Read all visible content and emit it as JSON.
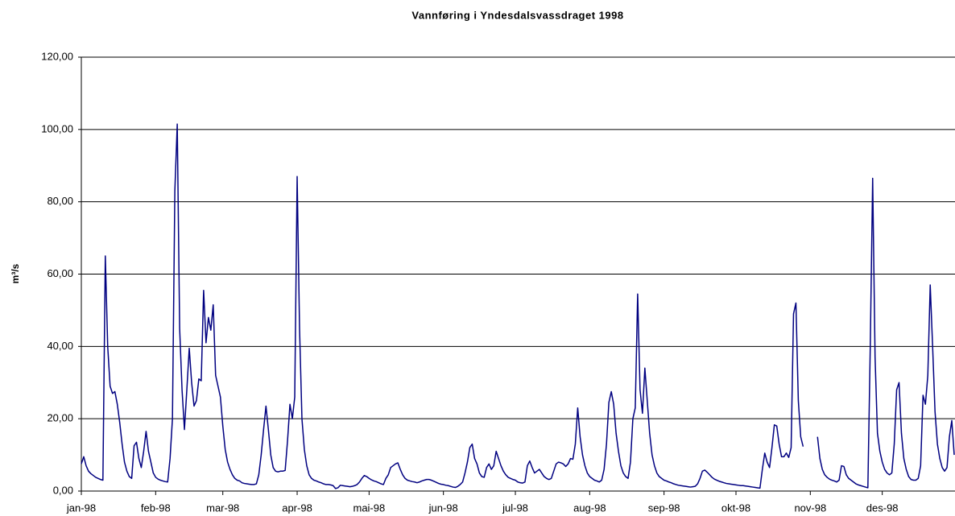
{
  "chart_data": {
    "type": "line",
    "title": "Vannføring i Yndesdalsvassdraget 1998",
    "y_label": "m³/s",
    "color": "#000080",
    "grid": true,
    "ylim": [
      0,
      120
    ],
    "yticks": [
      {
        "value": 0,
        "label": "0,00"
      },
      {
        "value": 20,
        "label": "20,00"
      },
      {
        "value": 40,
        "label": "40,00"
      },
      {
        "value": 60,
        "label": "60,00"
      },
      {
        "value": 80,
        "label": "80,00"
      },
      {
        "value": 100,
        "label": "100,00"
      },
      {
        "value": 120,
        "label": "120,00"
      }
    ],
    "categories": [
      "jan-98",
      null,
      null,
      null,
      null,
      null,
      null,
      null,
      null,
      null,
      null,
      null,
      null,
      null,
      null,
      null,
      null,
      null,
      null,
      null,
      null,
      null,
      null,
      null,
      null,
      null,
      null,
      null,
      null,
      null,
      null,
      "feb-98",
      null,
      null,
      null,
      null,
      null,
      null,
      null,
      null,
      null,
      null,
      null,
      null,
      null,
      null,
      null,
      null,
      null,
      null,
      null,
      null,
      null,
      null,
      null,
      null,
      null,
      null,
      null,
      "mar-98",
      null,
      null,
      null,
      null,
      null,
      null,
      null,
      null,
      null,
      null,
      null,
      null,
      null,
      null,
      null,
      null,
      null,
      null,
      null,
      null,
      null,
      null,
      null,
      null,
      null,
      null,
      null,
      null,
      null,
      null,
      "apr-98",
      null,
      null,
      null,
      null,
      null,
      null,
      null,
      null,
      null,
      null,
      null,
      null,
      null,
      null,
      null,
      null,
      null,
      null,
      null,
      null,
      null,
      null,
      null,
      null,
      null,
      null,
      null,
      null,
      null,
      "mai-98",
      null,
      null,
      null,
      null,
      null,
      null,
      null,
      null,
      null,
      null,
      null,
      null,
      null,
      null,
      null,
      null,
      null,
      null,
      null,
      null,
      null,
      null,
      null,
      null,
      null,
      null,
      null,
      null,
      null,
      null,
      "jun-98",
      null,
      null,
      null,
      null,
      null,
      null,
      null,
      null,
      null,
      null,
      null,
      null,
      null,
      null,
      null,
      null,
      null,
      null,
      null,
      null,
      null,
      null,
      null,
      null,
      null,
      null,
      null,
      null,
      null,
      "jul-98",
      null,
      null,
      null,
      null,
      null,
      null,
      null,
      null,
      null,
      null,
      null,
      null,
      null,
      null,
      null,
      null,
      null,
      null,
      null,
      null,
      null,
      null,
      null,
      null,
      null,
      null,
      null,
      null,
      null,
      null,
      "aug-98",
      null,
      null,
      null,
      null,
      null,
      null,
      null,
      null,
      null,
      null,
      null,
      null,
      null,
      null,
      null,
      null,
      null,
      null,
      null,
      null,
      null,
      null,
      null,
      null,
      null,
      null,
      null,
      null,
      null,
      null,
      "sep-98",
      null,
      null,
      null,
      null,
      null,
      null,
      null,
      null,
      null,
      null,
      null,
      null,
      null,
      null,
      null,
      null,
      null,
      null,
      null,
      null,
      null,
      null,
      null,
      null,
      null,
      null,
      null,
      null,
      null,
      "okt-98",
      null,
      null,
      null,
      null,
      null,
      null,
      null,
      null,
      null,
      null,
      null,
      null,
      null,
      null,
      null,
      null,
      null,
      null,
      null,
      null,
      null,
      null,
      null,
      null,
      null,
      null,
      null,
      null,
      null,
      null,
      "nov-98",
      null,
      null,
      null,
      null,
      null,
      null,
      null,
      null,
      null,
      null,
      null,
      null,
      null,
      null,
      null,
      null,
      null,
      null,
      null,
      null,
      null,
      null,
      null,
      null,
      null,
      null,
      null,
      null,
      null,
      "des-98",
      null,
      null,
      null,
      null,
      null,
      null,
      null,
      null,
      null,
      null,
      null,
      null,
      null,
      null,
      null,
      null,
      null,
      null,
      null,
      null,
      null,
      null,
      null,
      null,
      null,
      null,
      null,
      null,
      null,
      null
    ],
    "values": [
      7.5,
      9.5,
      7,
      5.5,
      4.8,
      4.3,
      3.8,
      3.5,
      3.2,
      3,
      65,
      40,
      29,
      27,
      27.5,
      24,
      19,
      13,
      8,
      5.5,
      4,
      3.5,
      12.5,
      13.5,
      9,
      6.5,
      11,
      16.5,
      11,
      8,
      5,
      3.8,
      3.3,
      3,
      2.8,
      2.6,
      2.5,
      9,
      20,
      83,
      101.5,
      45,
      28,
      17,
      28,
      39.5,
      30,
      23.5,
      25,
      31,
      30.5,
      55.5,
      41,
      48,
      44.5,
      51.5,
      32,
      29,
      26,
      18,
      11.5,
      8,
      6,
      4.5,
      3.5,
      3,
      2.8,
      2.3,
      2.1,
      2,
      1.9,
      1.8,
      1.8,
      2,
      4.5,
      10,
      17,
      23.5,
      17,
      10,
      6.5,
      5.5,
      5.3,
      5.5,
      5.5,
      5.7,
      14,
      24,
      20,
      26,
      87,
      45,
      20,
      11.5,
      7,
      4.5,
      3.5,
      3,
      2.8,
      2.5,
      2.3,
      2,
      1.8,
      1.8,
      1.7,
      1.5,
      0.7,
      0.9,
      1.6,
      1.5,
      1.4,
      1.3,
      1.2,
      1.3,
      1.5,
      1.8,
      2.5,
      3.5,
      4.3,
      4,
      3.5,
      3.1,
      2.8,
      2.6,
      2.3,
      2,
      1.8,
      3.5,
      4.5,
      6.5,
      7,
      7.5,
      7.8,
      6,
      4.5,
      3.5,
      3,
      2.8,
      2.6,
      2.5,
      2.3,
      2.5,
      2.8,
      3,
      3.2,
      3.2,
      3,
      2.7,
      2.4,
      2.1,
      1.9,
      1.8,
      1.6,
      1.5,
      1.3,
      1.1,
      1,
      1.3,
      1.8,
      2.5,
      5,
      8,
      12,
      13,
      9,
      7.5,
      5,
      4,
      3.8,
      6.5,
      7.5,
      6,
      7,
      11,
      9,
      7,
      5.5,
      4.5,
      3.8,
      3.5,
      3.2,
      3,
      2.5,
      2.3,
      2.2,
      2.5,
      7,
      8.3,
      6.5,
      5,
      5.5,
      6,
      5,
      4,
      3.5,
      3.2,
      3.5,
      5.5,
      7.5,
      8,
      7.8,
      7.5,
      6.8,
      7.5,
      9,
      8.8,
      13,
      23,
      15,
      10,
      7,
      5,
      4,
      3.5,
      3,
      2.8,
      2.5,
      3,
      6,
      13,
      24.5,
      27.5,
      24,
      16,
      11,
      7,
      5,
      4,
      3.5,
      8,
      20,
      23,
      54.5,
      28,
      21.5,
      34,
      25,
      16,
      10,
      7,
      5,
      4,
      3.5,
      3,
      2.8,
      2.5,
      2.3,
      2,
      1.8,
      1.6,
      1.5,
      1.4,
      1.3,
      1.2,
      1.1,
      1.2,
      1.3,
      2,
      3.5,
      5.5,
      5.8,
      5.2,
      4.5,
      3.8,
      3.3,
      3,
      2.7,
      2.5,
      2.3,
      2.1,
      2,
      1.9,
      1.8,
      1.7,
      1.6,
      1.5,
      1.5,
      1.4,
      1.3,
      1.2,
      1.1,
      1,
      0.9,
      0.8,
      6,
      10.5,
      8,
      6.5,
      12,
      18.3,
      18,
      13,
      9.5,
      9.5,
      10.5,
      9.3,
      12,
      49,
      52,
      25,
      15,
      12.3,
      null,
      null,
      null,
      null,
      null,
      15,
      9,
      6,
      4.5,
      3.8,
      3.3,
      3,
      2.8,
      2.5,
      3,
      7,
      6.8,
      4.5,
      3.5,
      3,
      2.5,
      2,
      1.7,
      1.5,
      1.3,
      1.1,
      0.9,
      40,
      86.5,
      37,
      16,
      11,
      8,
      6,
      5,
      4.5,
      5,
      13,
      28,
      30,
      16,
      9,
      6,
      4,
      3.2,
      3,
      3,
      3.5,
      7,
      26.5,
      24,
      32,
      57,
      40,
      22,
      13,
      9,
      6.5,
      5.5,
      6.5,
      15,
      19.5,
      10
    ]
  }
}
